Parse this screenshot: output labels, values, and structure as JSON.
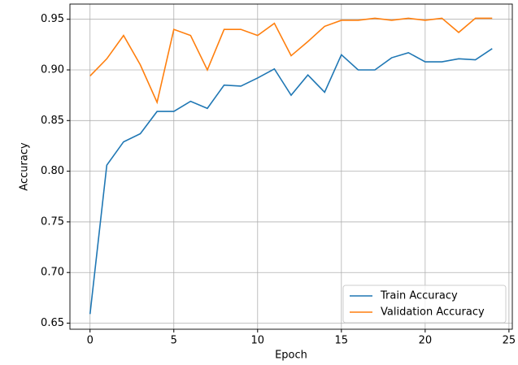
{
  "chart_data": {
    "type": "line",
    "xlabel": "Epoch",
    "ylabel": "Accuracy",
    "x": [
      0,
      1,
      2,
      3,
      4,
      5,
      6,
      7,
      8,
      9,
      10,
      11,
      12,
      13,
      14,
      15,
      16,
      17,
      18,
      19,
      20,
      21,
      22,
      23,
      24
    ],
    "series": [
      {
        "name": "Train Accuracy",
        "color": "#1f77b4",
        "values": [
          0.659,
          0.806,
          0.829,
          0.837,
          0.859,
          0.859,
          0.869,
          0.862,
          0.885,
          0.884,
          0.892,
          0.901,
          0.875,
          0.895,
          0.878,
          0.915,
          0.9,
          0.9,
          0.912,
          0.917,
          0.908,
          0.908,
          0.911,
          0.91,
          0.921
        ]
      },
      {
        "name": "Validation Accuracy",
        "color": "#ff7f0e",
        "values": [
          0.894,
          0.911,
          0.934,
          0.905,
          0.868,
          0.94,
          0.934,
          0.9,
          0.94,
          0.94,
          0.934,
          0.946,
          0.914,
          0.928,
          0.943,
          0.949,
          0.949,
          0.951,
          0.949,
          0.951,
          0.949,
          0.951,
          0.937,
          0.951,
          0.951
        ]
      }
    ],
    "xlim": [
      -1.2,
      25.2
    ],
    "xticks": [
      0,
      5,
      10,
      15,
      20,
      25
    ],
    "ylim": [
      0.644,
      0.965
    ],
    "yticks": [
      0.65,
      {
        "value": 0.7,
        "label": "0.70"
      },
      0.75,
      {
        "value": 0.8,
        "label": "0.80"
      },
      0.85,
      {
        "value": 0.9,
        "label": "0.90"
      },
      0.95
    ],
    "grid": true,
    "legend": "lower right"
  }
}
